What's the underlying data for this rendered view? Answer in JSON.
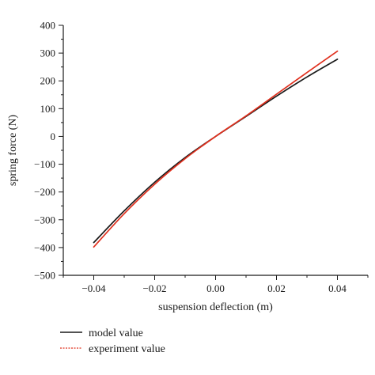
{
  "chart_data": {
    "type": "line",
    "xlabel": "suspension deflection (m)",
    "ylabel": "spring force (N)",
    "xlim": [
      -0.05,
      0.05
    ],
    "ylim": [
      -500,
      400
    ],
    "xticks": [
      -0.04,
      -0.02,
      0.0,
      0.02,
      0.04
    ],
    "xtick_labels": [
      "−0.04",
      "−0.02",
      "0.00",
      "0.02",
      "0.04"
    ],
    "yticks": [
      400,
      300,
      200,
      100,
      0,
      -100,
      -200,
      -300,
      -400,
      -500
    ],
    "ytick_labels": [
      "400",
      "300",
      "200",
      "100",
      "0",
      "−100",
      "−200",
      "−300",
      "−400",
      "−500"
    ],
    "grid": false,
    "legend_position": "bottom-left",
    "series": [
      {
        "name": "model value",
        "color": "#1a1a1a",
        "style": "solid",
        "x": [
          -0.04,
          -0.03,
          -0.02,
          -0.01,
          0.0,
          0.01,
          0.02,
          0.03,
          0.04
        ],
        "y": [
          -382,
          -268,
          -165,
          -76,
          0,
          72,
          145,
          214,
          278
        ]
      },
      {
        "name": "experiment value",
        "color": "#e0301e",
        "style": "dashed",
        "x": [
          -0.04,
          -0.03,
          -0.02,
          -0.01,
          0.0,
          0.01,
          0.02,
          0.03,
          0.04
        ],
        "y": [
          -398,
          -278,
          -172,
          -80,
          0,
          74,
          152,
          230,
          307
        ]
      }
    ]
  }
}
